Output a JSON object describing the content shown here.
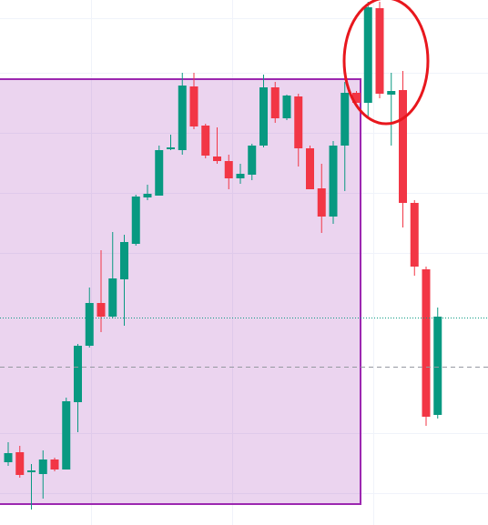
{
  "chart_data": {
    "type": "candlestick",
    "up_color": "#089981",
    "down_color": "#f23645",
    "ylim": [
      0,
      577
    ],
    "open": [
      69,
      80,
      58,
      56,
      72,
      61,
      135,
      197,
      244,
      229,
      270,
      309,
      360,
      362,
      413,
      412,
      482,
      439,
      405,
      400,
      381,
      385,
      417,
      481,
      447,
      471,
      414,
      370,
      339,
      417,
      475,
      464,
      568,
      473,
      478,
      354,
      281,
      121
    ],
    "high": [
      91,
      87,
      67,
      82,
      74,
      140,
      199,
      261,
      302,
      322,
      319,
      363,
      374,
      417,
      429,
      497,
      497,
      441,
      437,
      407,
      397,
      419,
      495,
      487,
      473,
      474,
      417,
      397,
      422,
      487,
      477,
      575,
      575,
      497,
      499,
      357,
      284,
      239
    ],
    "low": [
      65,
      52,
      17,
      29,
      59,
      61,
      102,
      195,
      212,
      227,
      219,
      307,
      357,
      362,
      412,
      407,
      435,
      403,
      397,
      369,
      375,
      379,
      415,
      442,
      445,
      394,
      369,
      321,
      331,
      367,
      464,
      447,
      469,
      417,
      327,
      274,
      109,
      117
    ],
    "close": [
      79,
      55,
      60,
      72,
      61,
      136,
      197,
      244,
      229,
      271,
      311,
      361,
      364,
      412,
      415,
      483,
      438,
      406,
      400,
      381,
      386,
      417,
      481,
      447,
      472,
      414,
      369,
      339,
      417,
      475,
      464,
      569,
      474,
      477,
      354,
      284,
      119,
      229
    ],
    "hlines": [
      {
        "value": 228,
        "style": "dotted",
        "color": "#089981"
      },
      {
        "value": 174,
        "style": "dashed",
        "color": "#9598a1"
      }
    ]
  }
}
